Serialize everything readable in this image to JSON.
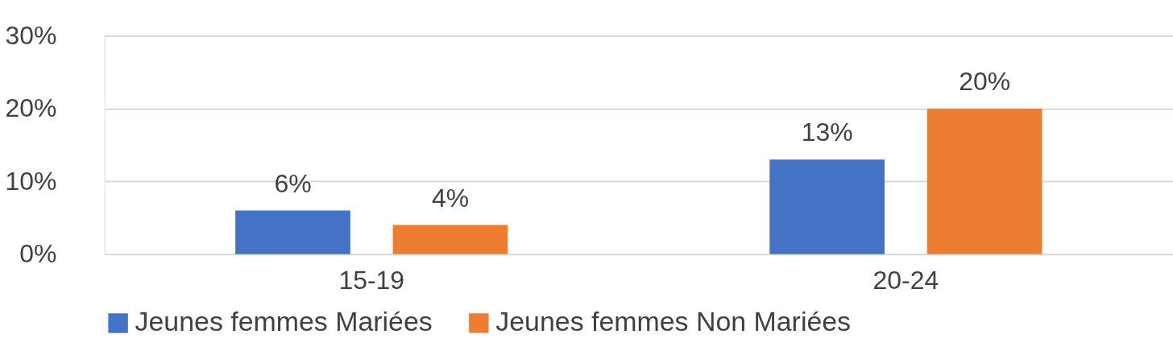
{
  "chart_data": {
    "type": "bar",
    "categories": [
      "15-19",
      "20-24"
    ],
    "series": [
      {
        "name": "Jeunes femmes Mariées",
        "color": "#4472c4",
        "values": [
          6,
          13
        ],
        "value_labels": [
          "6%",
          "13%"
        ]
      },
      {
        "name": "Jeunes femmes Non Mariées",
        "color": "#ed7d31",
        "values": [
          4,
          20
        ],
        "value_labels": [
          "4%",
          "20%"
        ]
      }
    ],
    "ylim": [
      0,
      30
    ],
    "yticks": [
      {
        "value": 0,
        "label": "0%"
      },
      {
        "value": 10,
        "label": "10%"
      },
      {
        "value": 20,
        "label": "20%"
      },
      {
        "value": 30,
        "label": "30%"
      }
    ],
    "grid": "y",
    "legend": "bottom"
  }
}
